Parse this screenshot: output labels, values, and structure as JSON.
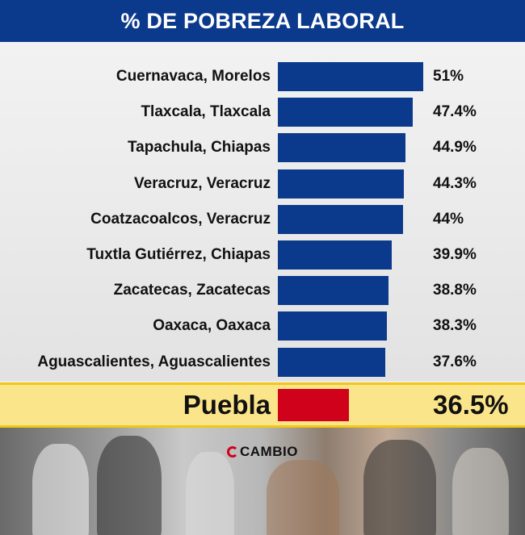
{
  "header": {
    "title": "% DE POBREZA LABORAL"
  },
  "colors": {
    "header_bg": "#0b3a8c",
    "bar": "#0b3a8c",
    "highlight_bar": "#d0021b",
    "highlight_bg": "#fbe58a"
  },
  "chart_data": {
    "type": "bar",
    "orientation": "horizontal",
    "title": "% DE POBREZA LABORAL",
    "categories": [
      "Cuernavaca, Morelos",
      "Tlaxcala, Tlaxcala",
      "Tapachula, Chiapas",
      "Veracruz, Veracruz",
      "Coatzacoalcos, Veracruz",
      "Tuxtla Gutiérrez, Chiapas",
      "Zacatecas, Zacatecas",
      "Oaxaca, Oaxaca",
      "Aguascalientes, Aguascalientes"
    ],
    "values": [
      51,
      47.4,
      44.9,
      44.3,
      44,
      39.9,
      38.8,
      38.3,
      37.6
    ],
    "value_labels": [
      "51%",
      "47.4%",
      "44.9%",
      "44.3%",
      "44%",
      "39.9%",
      "38.8%",
      "38.3%",
      "37.6%"
    ],
    "highlight": {
      "category": "Puebla",
      "value": 36.5,
      "value_label": "36.5%"
    }
  },
  "logo": {
    "text": "CAMBIO"
  }
}
